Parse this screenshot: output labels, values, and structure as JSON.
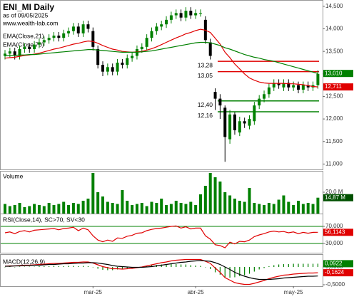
{
  "chart_data": [
    {
      "type": "candlestick",
      "title": "ENI_MI Daily",
      "subtitle": "as of 09/05/2025",
      "source": "www.wealth-lab.com",
      "up_color": "#008000",
      "down_color": "#000000",
      "open": [
        13.4,
        13.45,
        13.5,
        13.4,
        13.55,
        13.6,
        13.55,
        13.65,
        13.7,
        13.75,
        13.8,
        13.85,
        13.8,
        13.9,
        13.95,
        14.05,
        13.9,
        14.1,
        13.95,
        13.55,
        13.2,
        13.05,
        13.15,
        13.05,
        13.25,
        13.2,
        13.35,
        13.4,
        13.55,
        13.6,
        13.8,
        13.95,
        14.05,
        14.1,
        14.2,
        14.3,
        14.35,
        14.25,
        14.4,
        14.3,
        14.35,
        14.2,
        13.7,
        12.6,
        12.45,
        12.25,
        11.55,
        12.1,
        11.7,
        11.95,
        11.85,
        11.95,
        12.3,
        12.45,
        12.55,
        12.7,
        12.8,
        12.7,
        12.8,
        12.7,
        12.75,
        12.65,
        12.75,
        12.7,
        12.75
      ],
      "high": [
        13.53,
        13.58,
        13.58,
        13.63,
        13.68,
        13.68,
        13.73,
        13.78,
        13.83,
        13.88,
        13.93,
        13.93,
        13.98,
        14.03,
        14.13,
        14.13,
        14.18,
        14.18,
        14.03,
        13.63,
        13.28,
        13.23,
        13.23,
        13.33,
        13.33,
        13.43,
        13.48,
        13.63,
        13.68,
        13.88,
        14.03,
        14.13,
        14.18,
        14.28,
        14.38,
        14.43,
        14.43,
        14.48,
        14.48,
        14.43,
        14.43,
        14.28,
        13.78,
        12.68,
        12.55,
        12.3,
        12.2,
        12.15,
        12.05,
        12.03,
        12.08,
        12.38,
        12.53,
        12.63,
        12.78,
        12.88,
        12.88,
        12.88,
        12.88,
        12.83,
        12.83,
        12.83,
        12.83,
        12.83,
        13.08
      ],
      "low": [
        13.32,
        13.37,
        13.32,
        13.32,
        13.47,
        13.47,
        13.47,
        13.57,
        13.62,
        13.67,
        13.72,
        13.72,
        13.72,
        13.82,
        13.87,
        13.82,
        13.82,
        13.92,
        13.52,
        13.12,
        12.95,
        12.97,
        12.97,
        12.97,
        13.12,
        13.12,
        13.27,
        13.32,
        13.47,
        13.52,
        13.72,
        13.87,
        13.97,
        14.02,
        14.12,
        14.22,
        14.17,
        14.17,
        14.22,
        14.22,
        14.27,
        13.67,
        13.32,
        12.2,
        12.0,
        11.05,
        11.45,
        11.65,
        11.62,
        11.8,
        11.77,
        11.87,
        12.22,
        12.37,
        12.47,
        12.62,
        12.67,
        12.62,
        12.62,
        12.62,
        12.57,
        12.57,
        12.62,
        12.62,
        12.67
      ],
      "close": [
        13.45,
        13.5,
        13.4,
        13.55,
        13.6,
        13.55,
        13.65,
        13.7,
        13.75,
        13.8,
        13.85,
        13.8,
        13.9,
        13.95,
        14.05,
        13.9,
        14.1,
        14.0,
        13.6,
        13.2,
        13.05,
        13.15,
        13.05,
        13.25,
        13.2,
        13.35,
        13.4,
        13.55,
        13.6,
        13.8,
        13.95,
        14.05,
        14.1,
        14.2,
        14.3,
        14.35,
        14.25,
        14.4,
        14.3,
        14.35,
        14.35,
        13.75,
        13.4,
        12.45,
        12.3,
        11.6,
        12.1,
        11.75,
        11.95,
        11.9,
        12.0,
        12.3,
        12.45,
        12.55,
        12.7,
        12.8,
        12.75,
        12.8,
        12.7,
        12.75,
        12.65,
        12.75,
        12.7,
        12.75,
        13.0
      ],
      "series": [
        {
          "name": "EMA(Close,21)",
          "color": "#e00000",
          "last_label": "12,711",
          "values": [
            13.35,
            13.36,
            13.37,
            13.39,
            13.41,
            13.42,
            13.44,
            13.46,
            13.49,
            13.52,
            13.55,
            13.57,
            13.6,
            13.63,
            13.66,
            13.68,
            13.71,
            13.73,
            13.72,
            13.68,
            13.63,
            13.59,
            13.55,
            13.53,
            13.5,
            13.49,
            13.48,
            13.49,
            13.5,
            13.53,
            13.56,
            13.6,
            13.65,
            13.7,
            13.75,
            13.8,
            13.84,
            13.89,
            13.92,
            13.96,
            13.99,
            13.97,
            13.92,
            13.79,
            13.66,
            13.48,
            13.36,
            13.22,
            13.11,
            13.0,
            12.91,
            12.86,
            12.82,
            12.8,
            12.79,
            12.79,
            12.79,
            12.79,
            12.78,
            12.78,
            12.77,
            12.76,
            12.74,
            12.72,
            12.711
          ]
        },
        {
          "name": "EMA(Close,70)",
          "color": "#008000",
          "last_label": "13,010",
          "values": [
            13.4,
            13.41,
            13.41,
            13.42,
            13.42,
            13.43,
            13.43,
            13.44,
            13.45,
            13.46,
            13.47,
            13.48,
            13.49,
            13.5,
            13.51,
            13.52,
            13.53,
            13.54,
            13.54,
            13.53,
            13.52,
            13.51,
            13.5,
            13.49,
            13.48,
            13.48,
            13.48,
            13.48,
            13.49,
            13.5,
            13.51,
            13.53,
            13.55,
            13.57,
            13.59,
            13.61,
            13.63,
            13.65,
            13.67,
            13.69,
            13.7,
            13.7,
            13.69,
            13.66,
            13.63,
            13.58,
            13.55,
            13.51,
            13.47,
            13.43,
            13.4,
            13.37,
            13.35,
            13.32,
            13.3,
            13.28,
            13.25,
            13.22,
            13.19,
            13.16,
            13.13,
            13.1,
            13.07,
            13.04,
            13.01
          ]
        }
      ],
      "levels": [
        {
          "value": 13.28,
          "label": "13,28",
          "color": "#e00000"
        },
        {
          "value": 13.05,
          "label": "13,05",
          "color": "#e00000"
        },
        {
          "value": 12.4,
          "label": "12,40",
          "color": "#008000"
        },
        {
          "value": 12.16,
          "label": "12,16",
          "color": "#008000"
        }
      ],
      "ylim": [
        10.88,
        14.64
      ],
      "yticks": [
        {
          "value": 14.5,
          "label": "14,500"
        },
        {
          "value": 14,
          "label": "14,000"
        },
        {
          "value": 13.5,
          "label": "13,500"
        },
        {
          "value": 13,
          "label": "13,000"
        },
        {
          "value": 12.5,
          "label": "12,500"
        },
        {
          "value": 12,
          "label": "12,000"
        },
        {
          "value": 11.5,
          "label": "11,500"
        },
        {
          "value": 11,
          "label": "11,000"
        }
      ]
    },
    {
      "type": "bar",
      "title": "Volume",
      "color": "#008000",
      "last_label": "14,87 M",
      "last_color": "#005000",
      "values": [
        9,
        7,
        8,
        10,
        6,
        7,
        9,
        8,
        7,
        10,
        8,
        9,
        11,
        8,
        10,
        9,
        12,
        14,
        38,
        20,
        16,
        11,
        10,
        9,
        22,
        12,
        8,
        9,
        10,
        7,
        11,
        10,
        14,
        8,
        9,
        12,
        10,
        9,
        11,
        8,
        18,
        26,
        38,
        34,
        30,
        20,
        17,
        14,
        12,
        11,
        24,
        10,
        9,
        8,
        10,
        9,
        13,
        17,
        11,
        8,
        12,
        9,
        10,
        9,
        14.87
      ],
      "ylim": [
        0,
        40
      ],
      "yticks": [
        {
          "value": 20,
          "label": "20,0 M"
        }
      ]
    },
    {
      "type": "line",
      "title": "RSI(Close,14), SC>70, SV<30",
      "level_color": "#008000",
      "series": [
        {
          "color": "#e00000",
          "last_label": "56,1143",
          "values": [
            55,
            57,
            53,
            58,
            60,
            57,
            61,
            62,
            63,
            64,
            65,
            62,
            65,
            66,
            68,
            60,
            66,
            62,
            48,
            38,
            34,
            38,
            35,
            43,
            42,
            47,
            49,
            54,
            55,
            60,
            63,
            65,
            66,
            68,
            70,
            71,
            66,
            69,
            64,
            66,
            66,
            48,
            40,
            27,
            25,
            20,
            33,
            29,
            35,
            34,
            38,
            46,
            50,
            53,
            57,
            59,
            57,
            58,
            55,
            57,
            53,
            56,
            54,
            56,
            56.1143
          ]
        }
      ],
      "ylim": [
        10,
        100
      ],
      "yticks": [
        {
          "value": 70,
          "label": "70,000"
        },
        {
          "value": 30,
          "label": "30,000"
        }
      ]
    },
    {
      "type": "line",
      "title": "MACD(12,26,9)",
      "categories": [
        null,
        null,
        null,
        null,
        null,
        null,
        null,
        null,
        null,
        null,
        null,
        null,
        null,
        null,
        null,
        null,
        null,
        null,
        "mar-25",
        null,
        null,
        null,
        null,
        null,
        null,
        null,
        null,
        null,
        null,
        null,
        null,
        null,
        null,
        null,
        null,
        null,
        null,
        null,
        null,
        "abr-25",
        null,
        null,
        null,
        null,
        null,
        null,
        null,
        null,
        null,
        null,
        null,
        null,
        null,
        null,
        null,
        null,
        null,
        null,
        null,
        "may-25",
        null,
        null,
        null,
        null,
        null
      ],
      "series": [
        {
          "kind": "bar",
          "color": "#008000",
          "last_label": "0,0922",
          "values": [
            0,
            0.01,
            0,
            0.01,
            0.01,
            0.01,
            0.01,
            0.02,
            0.02,
            0.02,
            0.03,
            0.02,
            0.02,
            0.03,
            0.03,
            0.02,
            0.03,
            0.02,
            -0.01,
            -0.05,
            -0.08,
            -0.09,
            -0.09,
            -0.07,
            -0.07,
            -0.05,
            -0.03,
            -0.01,
            0.01,
            0.03,
            0.05,
            0.06,
            0.07,
            0.07,
            0.08,
            0.08,
            0.07,
            0.07,
            0.05,
            0.04,
            0.03,
            -0.01,
            -0.06,
            -0.15,
            -0.22,
            -0.3,
            -0.3,
            -0.29,
            -0.26,
            -0.23,
            -0.19,
            -0.13,
            -0.07,
            -0.03,
            0.02,
            0.05,
            0.07,
            0.08,
            0.08,
            0.09,
            0.09,
            0.09,
            0.09,
            0.09,
            0.0922
          ]
        },
        {
          "color": "#e00000",
          "last_label": "-0,1624",
          "values": [
            0.02,
            0.03,
            0.03,
            0.04,
            0.05,
            0.05,
            0.06,
            0.07,
            0.08,
            0.09,
            0.1,
            0.1,
            0.11,
            0.12,
            0.13,
            0.13,
            0.14,
            0.14,
            0.11,
            0.06,
            0.01,
            -0.02,
            -0.05,
            -0.05,
            -0.06,
            -0.05,
            -0.04,
            -0.02,
            0.0,
            0.03,
            0.06,
            0.09,
            0.12,
            0.14,
            0.17,
            0.19,
            0.2,
            0.21,
            0.21,
            0.21,
            0.21,
            0.16,
            0.1,
            -0.03,
            -0.15,
            -0.3,
            -0.37,
            -0.44,
            -0.47,
            -0.49,
            -0.49,
            -0.46,
            -0.42,
            -0.38,
            -0.33,
            -0.29,
            -0.26,
            -0.23,
            -0.22,
            -0.2,
            -0.19,
            -0.18,
            -0.17,
            -0.17,
            -0.1624
          ]
        },
        {
          "color": "#000000",
          "values": [
            0.02,
            0.02,
            0.03,
            0.03,
            0.04,
            0.04,
            0.05,
            0.05,
            0.06,
            0.07,
            0.07,
            0.08,
            0.09,
            0.09,
            0.1,
            0.11,
            0.11,
            0.12,
            0.12,
            0.11,
            0.09,
            0.07,
            0.04,
            0.02,
            0.01,
            0.0,
            -0.01,
            -0.01,
            -0.01,
            0.0,
            0.01,
            0.03,
            0.05,
            0.07,
            0.09,
            0.11,
            0.13,
            0.14,
            0.16,
            0.17,
            0.18,
            0.17,
            0.16,
            0.12,
            0.07,
            0.0,
            -0.07,
            -0.15,
            -0.21,
            -0.26,
            -0.3,
            -0.33,
            -0.35,
            -0.35,
            -0.35,
            -0.34,
            -0.33,
            -0.31,
            -0.3,
            -0.29,
            -0.28,
            -0.27,
            -0.26,
            -0.26,
            -0.2546
          ]
        }
      ],
      "ylim": [
        -0.54,
        0.34
      ],
      "yticks": [
        {
          "value": 0,
          "label": "0,0000"
        },
        {
          "value": -0.5,
          "label": "-0,5000"
        }
      ]
    }
  ]
}
